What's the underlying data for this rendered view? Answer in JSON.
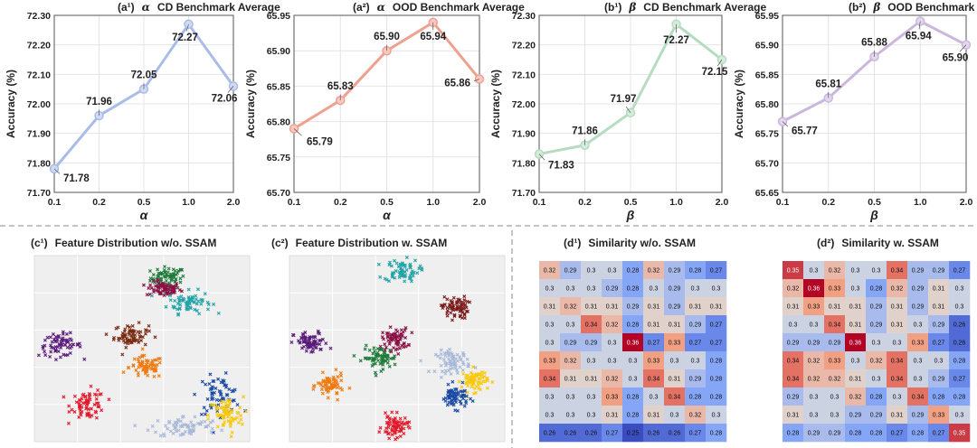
{
  "chart_data": [
    {
      "id": "a1",
      "type": "line",
      "panel_label": "(a¹)",
      "symbol": "α",
      "title": "CD Benchmark Average",
      "xlabel": "α",
      "ylabel": "Accuracy (%)",
      "categories": [
        "0.1",
        "0.2",
        "0.5",
        "1.0",
        "2.0"
      ],
      "values": [
        71.78,
        71.96,
        72.05,
        72.27,
        72.06
      ],
      "data_labels": [
        "71.78",
        "71.96",
        "72.05",
        "72.27",
        "72.06"
      ],
      "ylim": [
        71.7,
        72.3
      ],
      "yticks": [
        "71.70",
        "71.80",
        "71.90",
        "72.00",
        "72.10",
        "72.20",
        "72.30"
      ],
      "color": "#a9bce9"
    },
    {
      "id": "a2",
      "type": "line",
      "panel_label": "(a²)",
      "symbol": "α",
      "title": "OOD  Benchmark Average",
      "xlabel": "α",
      "ylabel": "Accuracy (%)",
      "categories": [
        "0.1",
        "0.2",
        "0.5",
        "1.0",
        "2.0"
      ],
      "values": [
        65.79,
        65.83,
        65.9,
        65.94,
        65.86
      ],
      "data_labels": [
        "65.79",
        "65.83",
        "65.90",
        "65.94",
        "65.86"
      ],
      "ylim": [
        65.7,
        65.95
      ],
      "yticks": [
        "65.70",
        "65.75",
        "65.80",
        "65.85",
        "65.90",
        "65.95"
      ],
      "color": "#f0a090"
    },
    {
      "id": "b1",
      "type": "line",
      "panel_label": "(b¹)",
      "symbol": "β",
      "title": "CD Benchmark  Average",
      "xlabel": "β",
      "ylabel": "Accuracy (%)",
      "categories": [
        "0.1",
        "0.2",
        "0.5",
        "1.0",
        "2.0"
      ],
      "values": [
        71.83,
        71.86,
        71.97,
        72.27,
        72.15
      ],
      "data_labels": [
        "71.83",
        "71.86",
        "71.97",
        "72.27",
        "72.15"
      ],
      "ylim": [
        71.7,
        72.3
      ],
      "yticks": [
        "71.70",
        "71.80",
        "71.90",
        "72.00",
        "72.10",
        "72.20",
        "72.30"
      ],
      "color": "#b5dcc0"
    },
    {
      "id": "b2",
      "type": "line",
      "panel_label": "(b²)",
      "symbol": "β",
      "title": "OOD Benchmark  Average",
      "xlabel": "β",
      "ylabel": "Accuracy (%)",
      "categories": [
        "0.1",
        "0.2",
        "0.5",
        "1.0",
        "2.0"
      ],
      "values": [
        65.77,
        65.81,
        65.88,
        65.94,
        65.9
      ],
      "data_labels": [
        "65.77",
        "65.81",
        "65.88",
        "65.94",
        "65.90"
      ],
      "ylim": [
        65.65,
        65.95
      ],
      "yticks": [
        "65.65",
        "65.70",
        "65.75",
        "65.80",
        "65.85",
        "65.90",
        "65.95"
      ],
      "color": "#cbb6dc"
    },
    {
      "id": "c1",
      "type": "scatter",
      "panel_label": "(c¹)",
      "title": "Feature Distribution w/o. SSAM",
      "clusters": [
        {
          "name": "green",
          "color": "#1e7b3a",
          "center": [
            62,
            88
          ],
          "spread": [
            4,
            3
          ]
        },
        {
          "name": "maroon",
          "color": "#8b1044",
          "center": [
            60,
            82
          ],
          "spread": [
            4,
            2
          ]
        },
        {
          "name": "teal",
          "color": "#22a3a7",
          "center": [
            72,
            75
          ],
          "spread": [
            5,
            3
          ]
        },
        {
          "name": "brown",
          "color": "#7a2a10",
          "center": [
            45,
            57
          ],
          "spread": [
            4,
            3
          ]
        },
        {
          "name": "purple",
          "color": "#5a1a7a",
          "center": [
            12,
            52
          ],
          "spread": [
            5,
            3
          ]
        },
        {
          "name": "orange",
          "color": "#f07a10",
          "center": [
            52,
            40
          ],
          "spread": [
            4,
            3
          ]
        },
        {
          "name": "red",
          "color": "#e01a2a",
          "center": [
            25,
            20
          ],
          "spread": [
            4,
            4
          ]
        },
        {
          "name": "blue",
          "color": "#1a4aa6",
          "center": [
            86,
            25
          ],
          "spread": [
            5,
            5
          ]
        },
        {
          "name": "yellow",
          "color": "#f8c80a",
          "center": [
            89,
            14
          ],
          "spread": [
            4,
            5
          ]
        },
        {
          "name": "lightblue",
          "color": "#a8b8d8",
          "center": [
            70,
            8
          ],
          "spread": [
            8,
            3
          ]
        }
      ]
    },
    {
      "id": "c2",
      "type": "scatter",
      "panel_label": "(c²)",
      "title": "Feature Distribution w. SSAM",
      "clusters": [
        {
          "name": "teal",
          "color": "#22a3a7",
          "center": [
            52,
            92
          ],
          "spread": [
            4,
            3
          ]
        },
        {
          "name": "brown",
          "color": "#7a1a1a",
          "center": [
            77,
            72
          ],
          "spread": [
            3,
            3
          ]
        },
        {
          "name": "purple",
          "color": "#5a1a7a",
          "center": [
            10,
            53
          ],
          "spread": [
            4,
            3
          ]
        },
        {
          "name": "maroon",
          "color": "#8b1044",
          "center": [
            49,
            55
          ],
          "spread": [
            3,
            3
          ]
        },
        {
          "name": "green",
          "color": "#1e7b3a",
          "center": [
            42,
            45
          ],
          "spread": [
            4,
            3
          ]
        },
        {
          "name": "lightblue",
          "color": "#a8b8d8",
          "center": [
            76,
            43
          ],
          "spread": [
            4,
            3
          ]
        },
        {
          "name": "yellow",
          "color": "#f8c80a",
          "center": [
            86,
            33
          ],
          "spread": [
            3,
            3
          ]
        },
        {
          "name": "blue",
          "color": "#1a4aa6",
          "center": [
            77,
            24
          ],
          "spread": [
            3,
            3
          ]
        },
        {
          "name": "orange",
          "color": "#f07a10",
          "center": [
            19,
            30
          ],
          "spread": [
            3,
            3
          ]
        },
        {
          "name": "red",
          "color": "#e01a2a",
          "center": [
            49,
            8
          ],
          "spread": [
            3,
            3
          ]
        }
      ]
    },
    {
      "id": "d1",
      "type": "heatmap",
      "panel_label": "(d¹)",
      "title": "Similarity w/o. SSAM",
      "matrix": [
        [
          "0.32",
          "0.29",
          "0.3",
          "0.3",
          "0.28",
          "0.32",
          "0.29",
          "0.28",
          "0.27"
        ],
        [
          "0.3",
          "0.3",
          "0.3",
          "0.29",
          "0.28",
          "0.3",
          "0.29",
          "0.3",
          "0.3"
        ],
        [
          "0.31",
          "0.32",
          "0.31",
          "0.31",
          "0.29",
          "0.31",
          "0.29",
          "0.31",
          "0.31"
        ],
        [
          "0.3",
          "0.3",
          "0.34",
          "0.32",
          "0.28",
          "0.31",
          "0.31",
          "0.29",
          "0.27"
        ],
        [
          "0.3",
          "0.29",
          "0.29",
          "0.3",
          "0.36",
          "0.27",
          "0.33",
          "0.27",
          "0.27"
        ],
        [
          "0.33",
          "0.32",
          "0.3",
          "0.3",
          "0.3",
          "0.33",
          "0.3",
          "0.3",
          "0.28"
        ],
        [
          "0.34",
          "0.31",
          "0.31",
          "0.32",
          "0.3",
          "0.34",
          "0.31",
          "0.29",
          "0.28"
        ],
        [
          "0.3",
          "0.3",
          "0.3",
          "0.33",
          "0.28",
          "0.3",
          "0.34",
          "0.28",
          "0.28"
        ],
        [
          "0.3",
          "0.3",
          "0.3",
          "0.31",
          "0.28",
          "0.31",
          "0.3",
          "0.32",
          "0.3"
        ],
        [
          "0.26",
          "0.26",
          "0.26",
          "0.27",
          "0.25",
          "0.26",
          "0.26",
          "0.27",
          "0.28"
        ]
      ],
      "vmin": 0.25,
      "vmax": 0.36
    },
    {
      "id": "d2",
      "type": "heatmap",
      "panel_label": "(d²)",
      "title": "Similarity w. SSAM",
      "matrix": [
        [
          "0.35",
          "0.3",
          "0.32",
          "0.3",
          "0.3",
          "0.34",
          "0.29",
          "0.29",
          "0.27"
        ],
        [
          "0.32",
          "0.36",
          "0.33",
          "0.3",
          "0.28",
          "0.32",
          "0.29",
          "0.31",
          "0.3"
        ],
        [
          "0.31",
          "0.33",
          "0.31",
          "0.31",
          "0.29",
          "0.31",
          "0.29",
          "0.31",
          "0.3"
        ],
        [
          "0.3",
          "0.3",
          "0.34",
          "0.31",
          "0.29",
          "0.31",
          "0.3",
          "0.29",
          "0.26"
        ],
        [
          "0.29",
          "0.29",
          "0.29",
          "0.36",
          "0.3",
          "0.3",
          "0.33",
          "0.27",
          "0.26"
        ],
        [
          "0.34",
          "0.32",
          "0.33",
          "0.3",
          "0.32",
          "0.34",
          "0.3",
          "0.3",
          "0.28"
        ],
        [
          "0.34",
          "0.32",
          "0.32",
          "0.31",
          "0.3",
          "0.34",
          "0.3",
          "0.29",
          "0.27"
        ],
        [
          "0.29",
          "0.3",
          "0.3",
          "0.32",
          "0.28",
          "0.3",
          "0.34",
          "0.28",
          "0.28"
        ],
        [
          "0.31",
          "0.3",
          "0.3",
          "0.29",
          "0.29",
          "0.31",
          "0.29",
          "0.33",
          "0.3"
        ],
        [
          "0.28",
          "0.29",
          "0.29",
          "0.28",
          "0.28",
          "0.27",
          "0.28",
          "0.27",
          "0.35"
        ]
      ],
      "vmin": 0.25,
      "vmax": 0.36
    }
  ]
}
